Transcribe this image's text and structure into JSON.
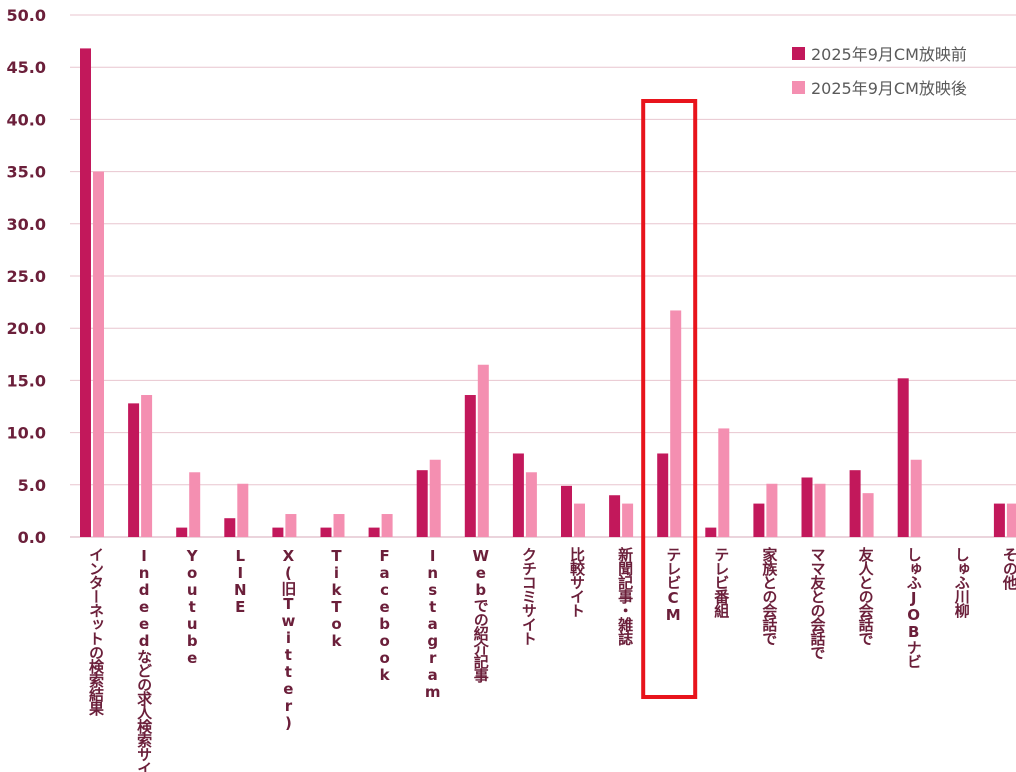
{
  "colors": {
    "before": "#C2185B",
    "after": "#F48FB1",
    "grid": "#E8C6CF",
    "axis_text": "#6B1F3A",
    "highlight": "#E8141C"
  },
  "legend": [
    {
      "label": "2025年9月CM放映前",
      "color": "#C2185B"
    },
    {
      "label": "2025年9月CM放映後",
      "color": "#F48FB1"
    }
  ],
  "chart_data": {
    "type": "bar",
    "title": "",
    "xlabel": "",
    "ylabel": "",
    "ylim": [
      0,
      50
    ],
    "yticks": [
      "0.0",
      "5.0",
      "10.0",
      "15.0",
      "20.0",
      "25.0",
      "30.0",
      "35.0",
      "40.0",
      "45.0",
      "50.0"
    ],
    "grid": true,
    "legend_position": "top-right",
    "categories": [
      "インターネットの検索結果",
      "Indeedなどの求人検索サイト",
      "Youtube",
      "LINE",
      "X(旧Twitter)",
      "TikTok",
      "Facebook",
      "Instagram",
      "Webでの紹介記事",
      "クチコミサイト",
      "比較サイト",
      "新聞記事・雑誌",
      "テレビCM",
      "テレビ番組",
      "家族との会話で",
      "ママ友との会話で",
      "友人との会話で",
      "しゅふJOBナビ",
      "しゅふ川柳",
      "その他"
    ],
    "series": [
      {
        "name": "2025年9月CM放映前",
        "values": [
          46.8,
          12.8,
          0.9,
          1.8,
          0.9,
          0.9,
          0.9,
          6.4,
          13.6,
          8.0,
          4.9,
          4.0,
          8.0,
          0.9,
          3.2,
          5.7,
          6.4,
          15.2,
          0,
          3.2
        ]
      },
      {
        "name": "2025年9月CM放映後",
        "values": [
          35.0,
          13.6,
          6.2,
          5.1,
          2.2,
          2.2,
          2.2,
          7.4,
          16.5,
          6.2,
          3.2,
          3.2,
          21.7,
          10.4,
          5.1,
          5.1,
          4.2,
          7.4,
          0,
          3.2
        ]
      }
    ],
    "highlighted_category": "テレビCM"
  }
}
